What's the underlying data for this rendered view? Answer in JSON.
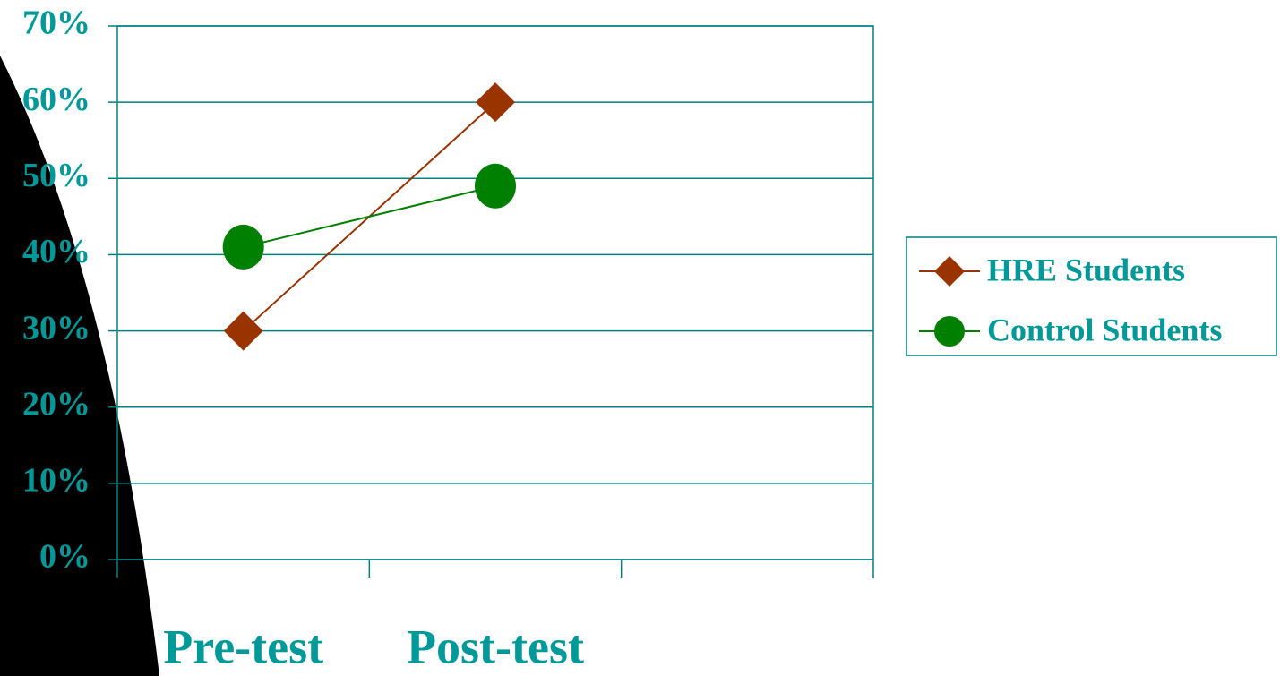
{
  "chart_data": {
    "type": "line",
    "categories": [
      "Pre-test",
      "Post-test",
      null
    ],
    "series": [
      {
        "name": "HRE Students",
        "color": "#993300",
        "marker": "diamond",
        "values": [
          30,
          60,
          null
        ]
      },
      {
        "name": "Control Students",
        "color": "#008000",
        "marker": "circle",
        "values": [
          41,
          49,
          null
        ]
      }
    ],
    "ylim": [
      0,
      70
    ],
    "yticks": [
      {
        "value": 0,
        "label": "0%"
      },
      {
        "value": 10,
        "label": "10%"
      },
      {
        "value": 20,
        "label": "20%"
      },
      {
        "value": 30,
        "label": "30%"
      },
      {
        "value": 40,
        "label": "40%"
      },
      {
        "value": 50,
        "label": "50%"
      },
      {
        "value": 60,
        "label": "60%"
      },
      {
        "value": 70,
        "label": "70%"
      }
    ],
    "grid": true,
    "legend": "right"
  }
}
